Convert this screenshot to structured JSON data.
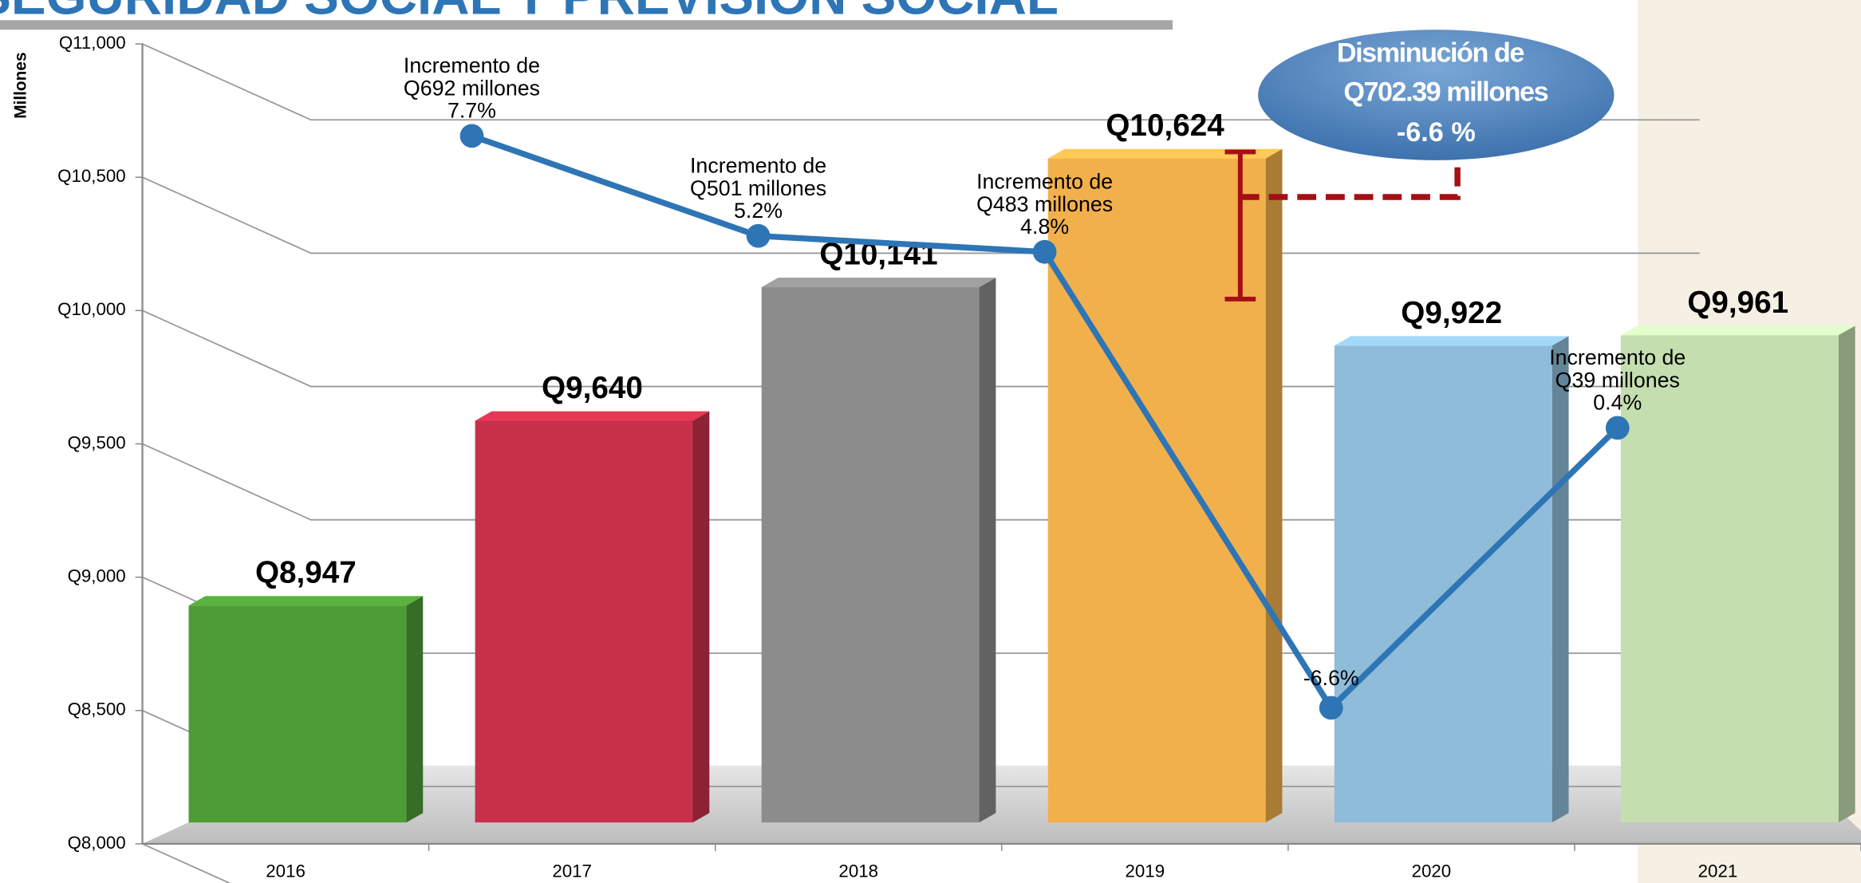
{
  "chart_data": {
    "type": "bar",
    "title": "SEGURIDAD SOCIAL Y PREVISIÓN SOCIAL",
    "y_axis_label": "Millones",
    "categories": [
      "2016",
      "2017",
      "2018",
      "2019",
      "2020",
      "2021"
    ],
    "values": [
      8947,
      9640,
      10141,
      10624,
      9922,
      9961
    ],
    "value_labels": [
      "Q8,947",
      "Q9,640",
      "Q10,141",
      "Q10,624",
      "Q9,922",
      "Q9,961"
    ],
    "colors": [
      "#4e9c36",
      "#c8304a",
      "#8c8c8c",
      "#f2b04c",
      "#8fbcd8",
      "#c4deaf"
    ],
    "ylim": [
      8000,
      11000
    ],
    "yticks": [
      {
        "value": 8000,
        "label": "Q8,000"
      },
      {
        "value": 8500,
        "label": "Q8,500"
      },
      {
        "value": 9000,
        "label": "Q9,000"
      },
      {
        "value": 9500,
        "label": "Q9,500"
      },
      {
        "value": 10000,
        "label": "Q10,000"
      },
      {
        "value": 10500,
        "label": "Q10,500"
      },
      {
        "value": 11000,
        "label": "Q11,000"
      }
    ],
    "grid": true,
    "line": {
      "type": "line",
      "axis": "y2",
      "color": "#2e75b6",
      "values": [
        null,
        7.7,
        5.2,
        4.8,
        -6.6,
        0.4
      ],
      "value_labels": [
        null,
        "7.7%",
        "5.2%",
        "4.8%",
        "-6.6%",
        "0.4%"
      ],
      "annotations": [
        null,
        [
          "Incremento de",
          "Q692 millones"
        ],
        [
          "Incremento de",
          "Q501 millones"
        ],
        [
          "Incremento de",
          "Q483 millones"
        ],
        null,
        [
          "Incremento de",
          "Q39 millones"
        ]
      ]
    },
    "y2lim": [
      -10,
      10
    ],
    "callout": [
      "Disminución de",
      "Q702.39 millones",
      "-6.6 %"
    ]
  }
}
